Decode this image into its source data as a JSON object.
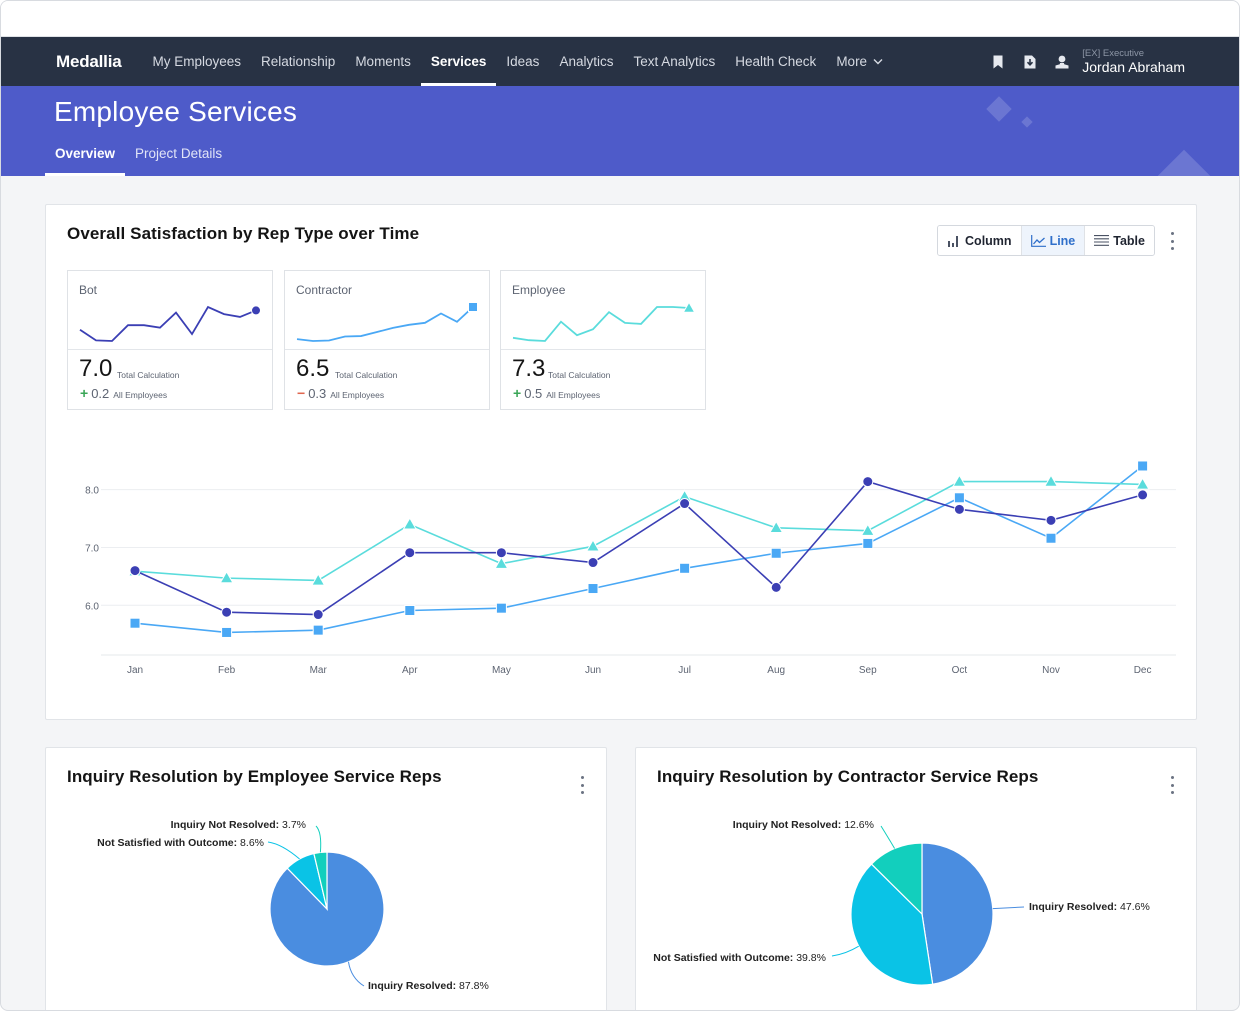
{
  "nav": {
    "brand": "Medallia",
    "items": [
      {
        "label": "My Employees",
        "active": false
      },
      {
        "label": "Relationship",
        "active": false
      },
      {
        "label": "Moments",
        "active": false
      },
      {
        "label": "Services",
        "active": true
      },
      {
        "label": "Ideas",
        "active": false
      },
      {
        "label": "Analytics",
        "active": false
      },
      {
        "label": "Text Analytics",
        "active": false
      },
      {
        "label": "Health Check",
        "active": false
      },
      {
        "label": "More",
        "active": false,
        "has_dropdown": true
      }
    ],
    "icons": [
      "bookmark-icon",
      "download-icon",
      "user-icon"
    ],
    "user_role": "[EX] Executive",
    "user_name": "Jordan Abraham"
  },
  "hero": {
    "title": "Employee Services",
    "tabs": [
      {
        "label": "Overview",
        "active": true
      },
      {
        "label": "Project Details",
        "active": false
      }
    ]
  },
  "colors": {
    "nav_bg": "#283244",
    "hero_bg": "#4e5bc9",
    "bot": "#3b3fb4",
    "contractor": "#4aa8f5",
    "employee": "#5adcdc",
    "positive": "#3aa657",
    "negative": "#e0664f",
    "pie_resolved": "#4a8de0",
    "pie_not_satisfied": "#0ac3e6",
    "pie_not_resolved": "#12cfbd"
  },
  "satisfaction_card": {
    "title": "Overall Satisfaction by Rep Type over Time",
    "view_toggle": [
      {
        "label": "Column",
        "icon": "column-chart-icon",
        "active": false
      },
      {
        "label": "Line",
        "icon": "line-chart-icon",
        "active": true
      },
      {
        "label": "Table",
        "icon": "table-icon",
        "active": false
      }
    ],
    "kpis": [
      {
        "label": "Bot",
        "value": "7.0",
        "value_caption": "Total Calculation",
        "delta_sign": "+",
        "delta": "0.2",
        "delta_caption": "All Employees",
        "trend": "positive",
        "series": "bot",
        "marker": "circle"
      },
      {
        "label": "Contractor",
        "value": "6.5",
        "value_caption": "Total Calculation",
        "delta_sign": "−",
        "delta": "0.3",
        "delta_caption": "All Employees",
        "trend": "negative",
        "series": "contractor",
        "marker": "square"
      },
      {
        "label": "Employee",
        "value": "7.3",
        "value_caption": "Total Calculation",
        "delta_sign": "+",
        "delta": "0.5",
        "delta_caption": "All Employees",
        "trend": "positive",
        "series": "employee",
        "marker": "triangle"
      }
    ]
  },
  "pie_cards": [
    {
      "title": "Inquiry Resolution by Employee Service Reps"
    },
    {
      "title": "Inquiry Resolution by Contractor Service Reps"
    }
  ],
  "chart_data": [
    {
      "type": "line",
      "title": "Overall Satisfaction by Rep Type over Time",
      "xlabel": "",
      "ylabel": "",
      "categories": [
        "Jan",
        "Feb",
        "Mar",
        "Apr",
        "May",
        "Jun",
        "Jul",
        "Aug",
        "Sep",
        "Oct",
        "Nov",
        "Dec"
      ],
      "yticks": [
        "6.0",
        "7.0",
        "8.0"
      ],
      "ylim": [
        5.14,
        8.6
      ],
      "grid": true,
      "legend": "none",
      "series": [
        {
          "name": "Bot",
          "key": "bot",
          "marker": "circle",
          "values": [
            6.6,
            5.88,
            5.84,
            6.91,
            6.91,
            6.74,
            7.76,
            6.31,
            8.14,
            7.66,
            7.47,
            7.91
          ]
        },
        {
          "name": "Contractor",
          "key": "contractor",
          "marker": "square",
          "values": [
            5.69,
            5.53,
            5.57,
            5.91,
            5.95,
            6.29,
            6.64,
            6.9,
            7.07,
            7.86,
            7.16,
            8.41
          ]
        },
        {
          "name": "Employee",
          "key": "employee",
          "marker": "triangle",
          "values": [
            6.59,
            6.47,
            6.43,
            7.4,
            6.72,
            7.02,
            7.88,
            7.34,
            7.29,
            8.14,
            8.14,
            8.09
          ]
        }
      ]
    },
    {
      "type": "pie",
      "title": "Inquiry Resolution by Employee Service Reps",
      "slices": [
        {
          "label": "Inquiry Resolved",
          "value": 87.8,
          "display": "87.8%",
          "color_key": "pie_resolved"
        },
        {
          "label": "Not Satisfied with Outcome",
          "value": 8.6,
          "display": "8.6%",
          "color_key": "pie_not_satisfied"
        },
        {
          "label": "Inquiry Not Resolved",
          "value": 3.7,
          "display": "3.7%",
          "color_key": "pie_not_resolved"
        }
      ]
    },
    {
      "type": "pie",
      "title": "Inquiry Resolution by Contractor Service Reps",
      "slices": [
        {
          "label": "Inquiry Resolved",
          "value": 47.6,
          "display": "47.6%",
          "color_key": "pie_resolved"
        },
        {
          "label": "Not Satisfied with Outcome",
          "value": 39.8,
          "display": "39.8%",
          "color_key": "pie_not_satisfied"
        },
        {
          "label": "Inquiry Not Resolved",
          "value": 12.6,
          "display": "12.6%",
          "color_key": "pie_not_resolved"
        }
      ]
    }
  ]
}
